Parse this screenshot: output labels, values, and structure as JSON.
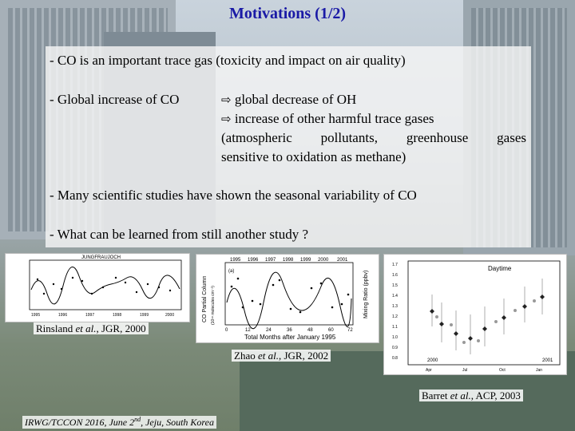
{
  "slide": {
    "title": "Motivations (1/2)",
    "bullets": {
      "b1": "- CO is an important trace gas (toxicity and impact on air quality)",
      "b2_lead": "- Global increase  of CO",
      "b2_items": [
        "global decrease of OH",
        "increase of other harmful trace gases"
      ],
      "b2_cont_line1": [
        "(atmospheric",
        "pollutants,",
        "greenhouse",
        "gases"
      ],
      "b2_cont_line2": "sensitive to oxidation as methane)",
      "b3": "- Many scientific studies have shown the seasonal variability of CO",
      "b4": "- What can be learned from still another study ?"
    },
    "arrow_icon": "right-arrow-icon",
    "figures": {
      "fig1": {
        "header": "JUNGFRAUJOCH",
        "years": [
          "1995",
          "1996",
          "1997",
          "1998",
          "1999",
          "2000"
        ]
      },
      "fig2": {
        "top_years": [
          "1995",
          "1996",
          "1997",
          "1998",
          "1999",
          "2000",
          "2001"
        ],
        "bottom_ticks": [
          "0",
          "12",
          "24",
          "36",
          "48",
          "60",
          "72"
        ],
        "xlabel": "Total Months after January 1995",
        "ylabel_left": "CO Partial Column",
        "ylabel_left_unit": "(10¹⁸ molecules cm⁻²)",
        "ylabel_right": "Mixing Ratio (ppbv)",
        "panel_label": "(a)"
      },
      "fig3": {
        "header": "Daytime",
        "y_ticks": [
          "1.7",
          "1.6",
          "1.5",
          "1.4",
          "1.3",
          "1.2",
          "1.1",
          "1.0",
          "0.9",
          "0.8"
        ],
        "x_ticks": [
          "Apr",
          "Jul",
          "Oct",
          "Jan"
        ],
        "year_left": "2000",
        "year_right": "2001"
      }
    },
    "captions": {
      "c1_pre": "Rinsland ",
      "c1_it": "et al.",
      "c1_post": ", JGR, 2000",
      "c2_pre": "Zhao ",
      "c2_it": "et al.",
      "c2_post": ", JGR, 2002",
      "c3_pre": "Barret ",
      "c3_it": "et al.",
      "c3_post": ", ACP, 2003"
    },
    "footer": {
      "pre": "IRWG/TCCON 2016, June 2",
      "sup": "nd",
      "post": ", Jeju, South Korea"
    }
  }
}
